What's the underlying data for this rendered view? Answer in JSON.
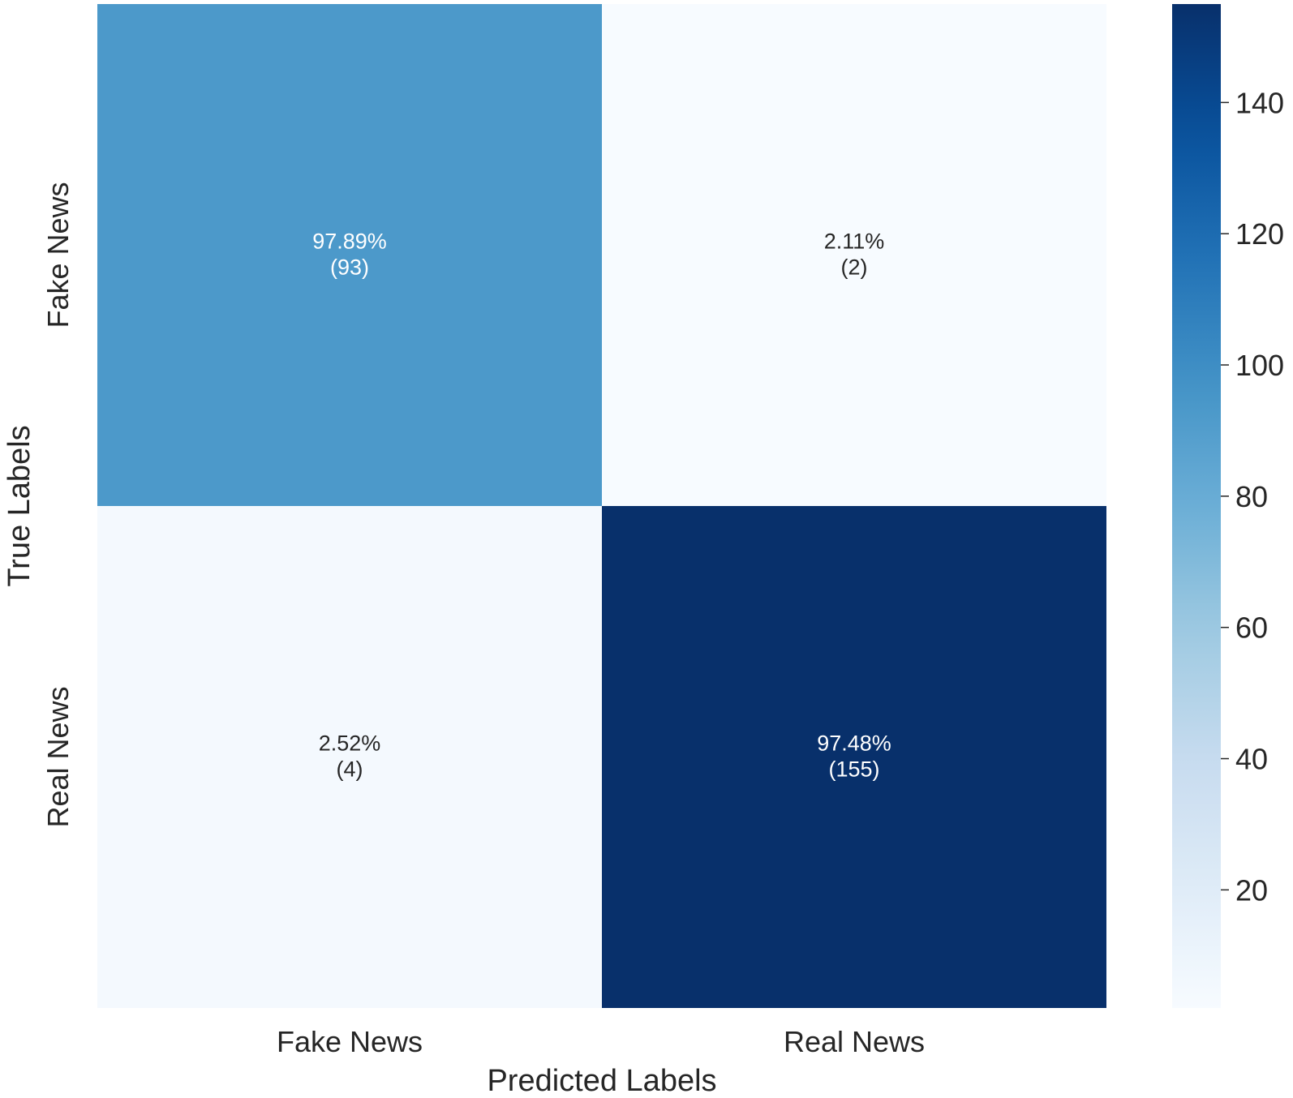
{
  "chart_data": {
    "type": "heatmap",
    "title": "",
    "xlabel": "Predicted Labels",
    "ylabel": "True Labels",
    "x_categories": [
      "Fake News",
      "Real News"
    ],
    "y_categories": [
      "Fake News",
      "Real News"
    ],
    "values": [
      [
        93,
        2
      ],
      [
        4,
        155
      ]
    ],
    "annotations": [
      [
        {
          "percent": "97.89%",
          "count": "(93)"
        },
        {
          "percent": "2.11%",
          "count": "(2)"
        }
      ],
      [
        {
          "percent": "2.52%",
          "count": "(4)"
        },
        {
          "percent": "97.48%",
          "count": "(155)"
        }
      ]
    ],
    "colormap": "Blues",
    "colorbar": {
      "vmin": 2,
      "vmax": 155,
      "ticks": [
        20,
        40,
        60,
        80,
        100,
        120,
        140
      ]
    },
    "colors": {
      "low": "#f7fbff",
      "high": "#08306b",
      "text_dark": "#262626",
      "text_light": "#ffffff"
    }
  }
}
